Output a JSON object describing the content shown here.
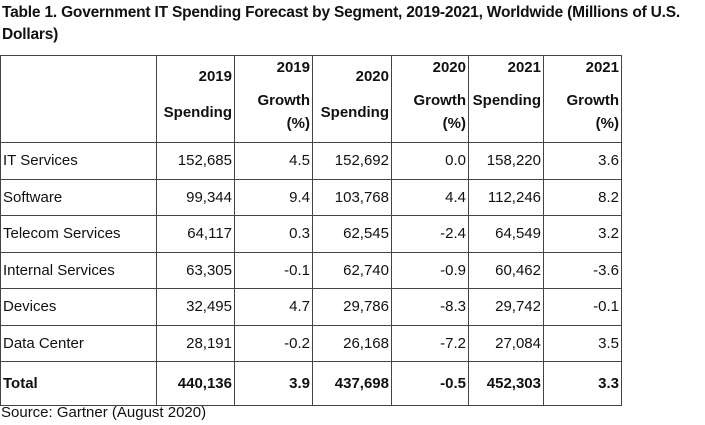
{
  "title": "Table 1. Government IT Spending Forecast by Segment, 2019-2021, Worldwide (Millions of U.S. Dollars)",
  "headers": [
    {
      "year": "2019",
      "label": "Spending",
      "unit": ""
    },
    {
      "year": "2019",
      "label": "Growth",
      "unit": "(%)"
    },
    {
      "year": "2020",
      "label": "Spending",
      "unit": ""
    },
    {
      "year": "2020",
      "label": "Growth",
      "unit": "(%)"
    },
    {
      "year": "2021",
      "label": "Spending",
      "unit": ""
    },
    {
      "year": "2021",
      "label": "Growth",
      "unit": "(%)"
    }
  ],
  "rows": [
    {
      "segment": "IT Services",
      "values": [
        "152,685",
        "4.5",
        "152,692",
        "0.0",
        "158,220",
        "3.6"
      ]
    },
    {
      "segment": "Software",
      "values": [
        "99,344",
        "9.4",
        "103,768",
        "4.4",
        "112,246",
        "8.2"
      ]
    },
    {
      "segment": "Telecom Services",
      "values": [
        "64,117",
        "0.3",
        "62,545",
        "-2.4",
        "64,549",
        "3.2"
      ]
    },
    {
      "segment": "Internal Services",
      "values": [
        "63,305",
        "-0.1",
        "62,740",
        "-0.9",
        "60,462",
        "-3.6"
      ]
    },
    {
      "segment": "Devices",
      "values": [
        "32,495",
        "4.7",
        "29,786",
        "-8.3",
        "29,742",
        "-0.1"
      ]
    },
    {
      "segment": "Data Center",
      "values": [
        "28,191",
        "-0.2",
        "26,168",
        "-7.2",
        "27,084",
        "3.5"
      ]
    }
  ],
  "total": {
    "segment": "Total",
    "values": [
      "440,136",
      "3.9",
      "437,698",
      "-0.5",
      "452,303",
      "3.3"
    ]
  },
  "source": "Source: Gartner (August 2020)"
}
